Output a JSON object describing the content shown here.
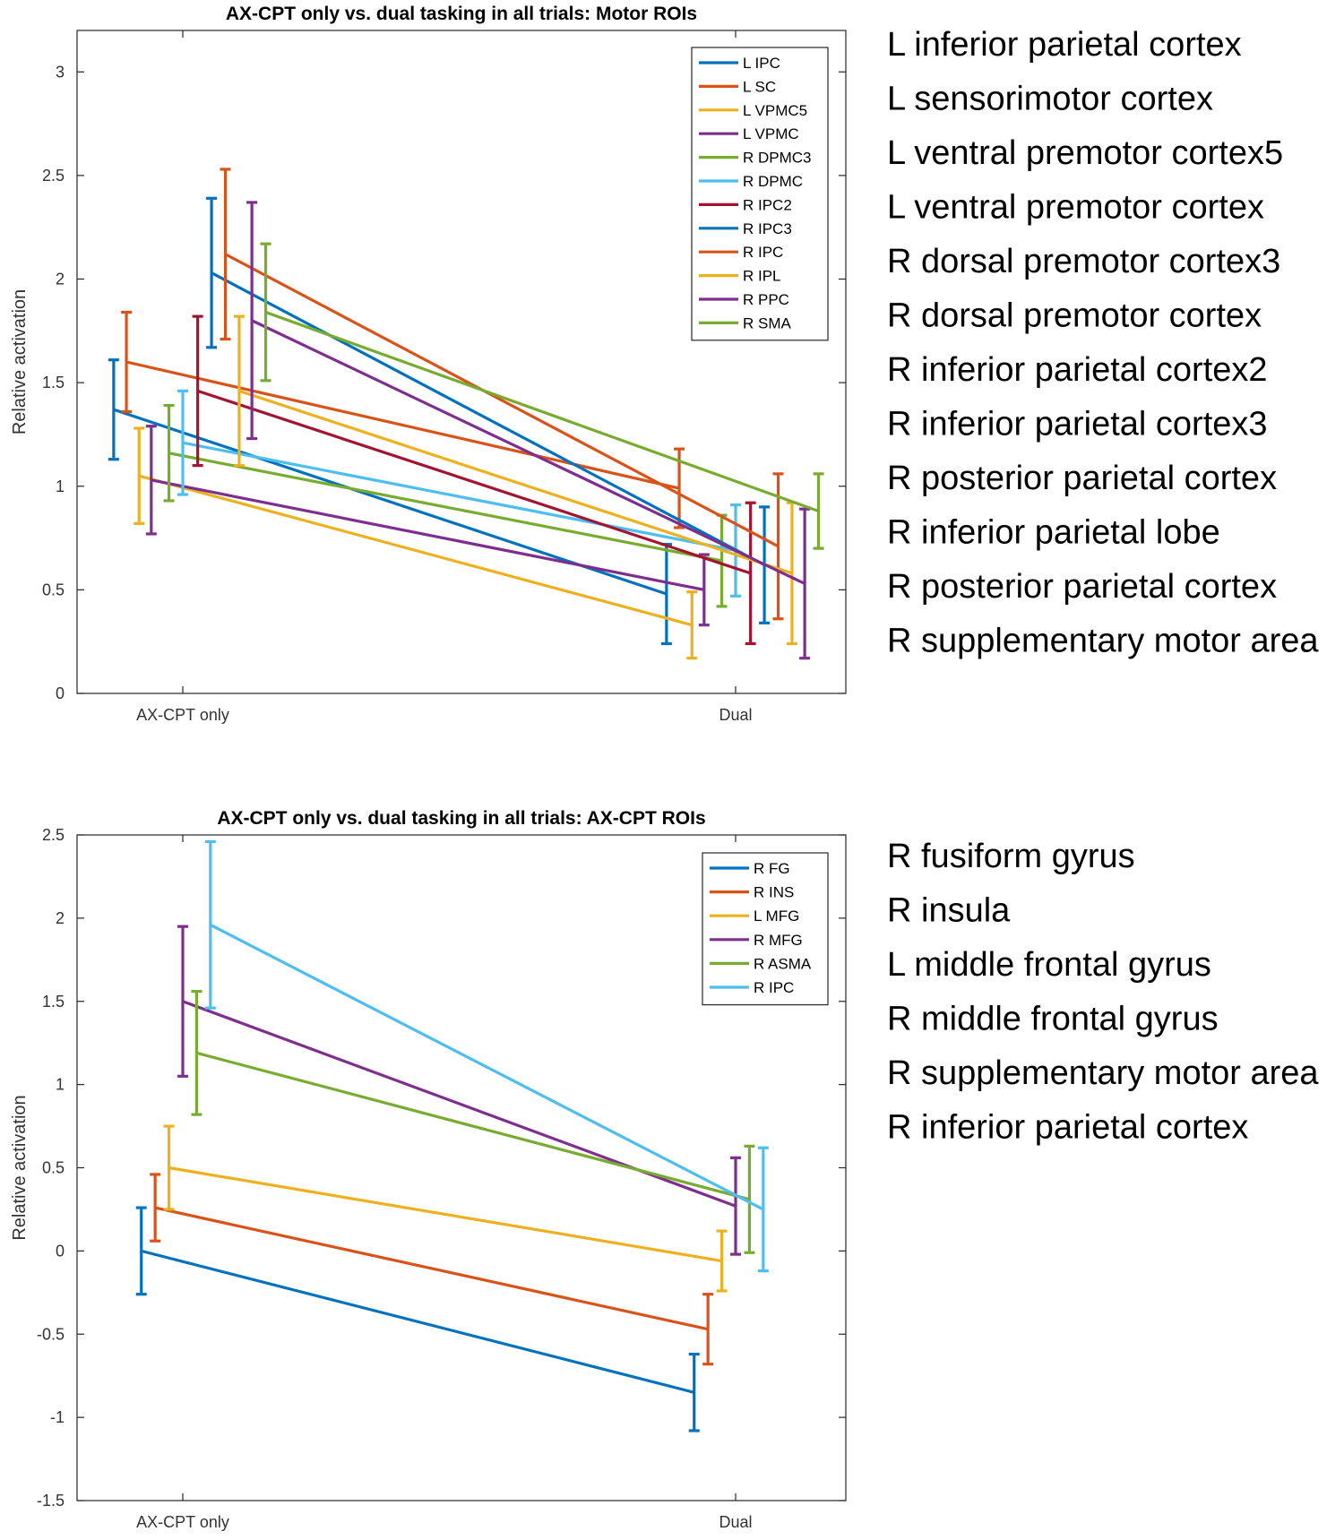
{
  "chart_data": [
    {
      "type": "line",
      "title": "AX-CPT only vs. dual tasking in all trials: Motor ROIs",
      "xlabel": "",
      "ylabel": "Relative activation",
      "categories": [
        "AX-CPT only",
        "Dual"
      ],
      "ylim": [
        0,
        3.2
      ],
      "yticks": [
        0,
        0.5,
        1,
        1.5,
        2,
        2.5,
        3
      ],
      "ytick_labels": [
        "0",
        "0.5",
        "1",
        "1.5",
        "2",
        "2.5",
        "3"
      ],
      "legend_position": "top-right",
      "series": [
        {
          "name": "L IPC",
          "full_name": "L inferior parietal cortex",
          "color": "#0072BD",
          "values": [
            1.37,
            0.48
          ],
          "lower": [
            1.13,
            0.24
          ],
          "upper": [
            1.61,
            0.72
          ],
          "offset": -0.125
        },
        {
          "name": "L SC",
          "full_name": "L sensorimotor cortex",
          "color": "#D95319",
          "values": [
            1.6,
            0.99
          ],
          "lower": [
            1.36,
            0.8
          ],
          "upper": [
            1.84,
            1.18
          ],
          "offset": -0.102
        },
        {
          "name": "L VPMC5",
          "full_name": "L ventral premotor cortex5",
          "color": "#EDB120",
          "values": [
            1.05,
            0.33
          ],
          "lower": [
            0.82,
            0.17
          ],
          "upper": [
            1.28,
            0.49
          ],
          "offset": -0.079
        },
        {
          "name": "L VPMC",
          "full_name": "L ventral premotor cortex",
          "color": "#7E2F8E",
          "values": [
            1.03,
            0.5
          ],
          "lower": [
            0.77,
            0.33
          ],
          "upper": [
            1.29,
            0.67
          ],
          "offset": -0.057
        },
        {
          "name": "R DPMC3",
          "full_name": "R dorsal premotor cortex3",
          "color": "#77AC30",
          "values": [
            1.16,
            0.64
          ],
          "lower": [
            0.93,
            0.42
          ],
          "upper": [
            1.39,
            0.86
          ],
          "offset": -0.025
        },
        {
          "name": "R DPMC",
          "full_name": "R dorsal premotor cortex",
          "color": "#4DBEEE",
          "values": [
            1.21,
            0.69
          ],
          "lower": [
            0.96,
            0.47
          ],
          "upper": [
            1.46,
            0.91
          ],
          "offset": 0
        },
        {
          "name": "R IPC2",
          "full_name": "R inferior parietal cortex2",
          "color": "#A2142F",
          "values": [
            1.46,
            0.58
          ],
          "lower": [
            1.1,
            0.24
          ],
          "upper": [
            1.82,
            0.92
          ],
          "offset": 0.027
        },
        {
          "name": "R IPC3",
          "full_name": "R inferior parietal cortex3",
          "color": "#0072BD",
          "values": [
            2.03,
            0.62
          ],
          "lower": [
            1.67,
            0.34
          ],
          "upper": [
            2.39,
            0.9
          ],
          "offset": 0.052
        },
        {
          "name": "R IPC",
          "full_name": "R posterior parietal cortex",
          "color": "#D95319",
          "values": [
            2.12,
            0.71
          ],
          "lower": [
            1.71,
            0.36
          ],
          "upper": [
            2.53,
            1.06
          ],
          "offset": 0.077
        },
        {
          "name": "R IPL",
          "full_name": "R inferior parietal lobe",
          "color": "#EDB120",
          "values": [
            1.46,
            0.58
          ],
          "lower": [
            1.1,
            0.24
          ],
          "upper": [
            1.82,
            0.92
          ],
          "offset": 0.102
        },
        {
          "name": "R PPC",
          "full_name": "R posterior parietal cortex",
          "color": "#7E2F8E",
          "values": [
            1.8,
            0.53
          ],
          "lower": [
            1.23,
            0.17
          ],
          "upper": [
            2.37,
            0.89
          ],
          "offset": 0.125
        },
        {
          "name": "R SMA",
          "full_name": "R supplementary motor area",
          "color": "#77AC30",
          "values": [
            1.84,
            0.88
          ],
          "lower": [
            1.51,
            0.7
          ],
          "upper": [
            2.17,
            1.06
          ],
          "offset": 0.15
        }
      ]
    },
    {
      "type": "line",
      "title": "AX-CPT only vs. dual tasking in all trials: AX-CPT ROIs",
      "xlabel": "",
      "ylabel": "Relative activation",
      "categories": [
        "AX-CPT only",
        "Dual"
      ],
      "ylim": [
        -1.5,
        2.5
      ],
      "yticks": [
        -1.5,
        -1,
        -0.5,
        0,
        0.5,
        1,
        1.5,
        2,
        2.5
      ],
      "ytick_labels": [
        "-1.5",
        "-1",
        "-0.5",
        "0",
        "0.5",
        "1",
        "1.5",
        "2",
        "2.5"
      ],
      "legend_position": "top-right",
      "series": [
        {
          "name": "R FG",
          "full_name": "R fusiform gyrus",
          "color": "#0072BD",
          "values": [
            0.0,
            -0.85
          ],
          "lower": [
            -0.26,
            -1.08
          ],
          "upper": [
            0.26,
            -0.62
          ],
          "offset": -0.075
        },
        {
          "name": "R INS",
          "full_name": "R insula",
          "color": "#D95319",
          "values": [
            0.26,
            -0.47
          ],
          "lower": [
            0.06,
            -0.68
          ],
          "upper": [
            0.46,
            -0.26
          ],
          "offset": -0.05
        },
        {
          "name": "L MFG",
          "full_name": "L middle frontal gyrus",
          "color": "#EDB120",
          "values": [
            0.5,
            -0.06
          ],
          "lower": [
            0.25,
            -0.24
          ],
          "upper": [
            0.75,
            0.12
          ],
          "offset": -0.025
        },
        {
          "name": "R MFG",
          "full_name": "R middle frontal gyrus",
          "color": "#7E2F8E",
          "values": [
            1.5,
            0.27
          ],
          "lower": [
            1.05,
            -0.02
          ],
          "upper": [
            1.95,
            0.56
          ],
          "offset": 0
        },
        {
          "name": "R ASMA",
          "full_name": "R supplementary motor area",
          "color": "#77AC30",
          "values": [
            1.19,
            0.31
          ],
          "lower": [
            0.82,
            -0.01
          ],
          "upper": [
            1.56,
            0.63
          ],
          "offset": 0.025
        },
        {
          "name": "R IPC",
          "full_name": "R inferior parietal cortex",
          "color": "#4DBEEE",
          "values": [
            1.96,
            0.25
          ],
          "lower": [
            1.46,
            -0.12
          ],
          "upper": [
            2.46,
            0.62
          ],
          "offset": 0.05
        }
      ]
    }
  ]
}
